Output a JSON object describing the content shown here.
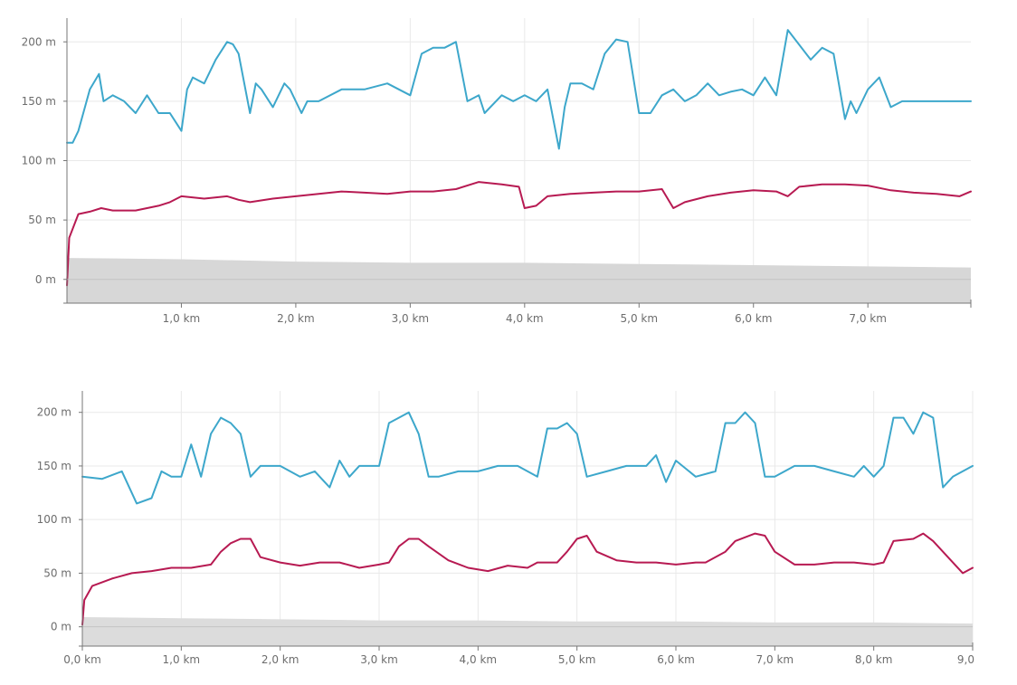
{
  "chart_data": [
    {
      "type": "line",
      "title": "",
      "xlabel": "",
      "ylabel": "",
      "xlim": [
        0,
        7.9
      ],
      "ylim": [
        -20,
        220
      ],
      "x_ticks": [
        {
          "value": 1,
          "label": "1,0 km"
        },
        {
          "value": 2,
          "label": "2,0 km"
        },
        {
          "value": 3,
          "label": "3,0 km"
        },
        {
          "value": 4,
          "label": "4,0 km"
        },
        {
          "value": 5,
          "label": "5,0 km"
        },
        {
          "value": 6,
          "label": "6,0 km"
        },
        {
          "value": 7,
          "label": "7,0 km"
        }
      ],
      "y_ticks": [
        {
          "value": 0,
          "label": "0 m"
        },
        {
          "value": 50,
          "label": "50 m"
        },
        {
          "value": 100,
          "label": "100 m"
        },
        {
          "value": 150,
          "label": "150 m"
        },
        {
          "value": 200,
          "label": "200 m"
        }
      ],
      "series": [
        {
          "name": "blue",
          "color": "#3da7cb",
          "type": "line",
          "x": [
            0,
            0.05,
            0.1,
            0.2,
            0.28,
            0.32,
            0.4,
            0.5,
            0.6,
            0.7,
            0.8,
            0.9,
            1.0,
            1.05,
            1.1,
            1.2,
            1.3,
            1.4,
            1.45,
            1.5,
            1.6,
            1.65,
            1.7,
            1.8,
            1.9,
            1.95,
            2.05,
            2.1,
            2.2,
            2.4,
            2.6,
            2.8,
            3.0,
            3.1,
            3.2,
            3.3,
            3.4,
            3.5,
            3.6,
            3.65,
            3.8,
            3.9,
            4.0,
            4.1,
            4.2,
            4.3,
            4.35,
            4.4,
            4.5,
            4.6,
            4.7,
            4.8,
            4.9,
            5.0,
            5.1,
            5.2,
            5.3,
            5.4,
            5.5,
            5.6,
            5.7,
            5.8,
            5.9,
            6.0,
            6.1,
            6.2,
            6.3,
            6.5,
            6.6,
            6.7,
            6.8,
            6.85,
            6.9,
            7.0,
            7.1,
            7.2,
            7.3,
            7.4,
            7.5,
            7.6,
            7.7,
            7.8,
            7.9
          ],
          "values": [
            115,
            115,
            125,
            160,
            173,
            150,
            155,
            150,
            140,
            155,
            140,
            140,
            125,
            160,
            170,
            165,
            185,
            200,
            198,
            190,
            140,
            165,
            160,
            145,
            165,
            160,
            140,
            150,
            150,
            160,
            160,
            165,
            155,
            190,
            195,
            195,
            200,
            150,
            155,
            140,
            155,
            150,
            155,
            150,
            160,
            110,
            145,
            165,
            165,
            160,
            190,
            202,
            200,
            140,
            140,
            155,
            160,
            150,
            155,
            165,
            155,
            158,
            160,
            155,
            170,
            155,
            210,
            185,
            195,
            190,
            135,
            150,
            140,
            160,
            170,
            145,
            150,
            150,
            150,
            150,
            150,
            150,
            150
          ]
        },
        {
          "name": "red",
          "color": "#b71a52",
          "type": "line",
          "x": [
            0,
            0.02,
            0.1,
            0.2,
            0.3,
            0.4,
            0.6,
            0.8,
            0.9,
            1.0,
            1.2,
            1.4,
            1.5,
            1.6,
            1.8,
            2.0,
            2.2,
            2.4,
            2.6,
            2.8,
            3.0,
            3.2,
            3.4,
            3.6,
            3.8,
            3.95,
            4.0,
            4.1,
            4.2,
            4.4,
            4.6,
            4.8,
            5.0,
            5.2,
            5.3,
            5.4,
            5.6,
            5.8,
            6.0,
            6.2,
            6.3,
            6.4,
            6.6,
            6.8,
            7.0,
            7.2,
            7.4,
            7.6,
            7.8,
            7.9
          ],
          "values": [
            -5,
            35,
            55,
            57,
            60,
            58,
            58,
            62,
            65,
            70,
            68,
            70,
            67,
            65,
            68,
            70,
            72,
            74,
            73,
            72,
            74,
            74,
            76,
            82,
            80,
            78,
            60,
            62,
            70,
            72,
            73,
            74,
            74,
            76,
            60,
            65,
            70,
            73,
            75,
            74,
            70,
            78,
            80,
            80,
            79,
            75,
            73,
            72,
            70,
            74
          ]
        },
        {
          "name": "gray",
          "color": "#d7d7d7",
          "type": "area",
          "x": [
            0,
            1,
            2,
            3,
            4,
            5,
            6,
            7,
            7.9
          ],
          "values": [
            18,
            17,
            15,
            14,
            14,
            13,
            12,
            11,
            10
          ]
        }
      ]
    },
    {
      "type": "line",
      "title": "",
      "xlabel": "",
      "ylabel": "",
      "xlim": [
        0,
        9.0
      ],
      "ylim": [
        -18,
        220
      ],
      "x_ticks": [
        {
          "value": 0,
          "label": "0,0 km"
        },
        {
          "value": 1,
          "label": "1,0 km"
        },
        {
          "value": 2,
          "label": "2,0 km"
        },
        {
          "value": 3,
          "label": "3,0 km"
        },
        {
          "value": 4,
          "label": "4,0 km"
        },
        {
          "value": 5,
          "label": "5,0 km"
        },
        {
          "value": 6,
          "label": "6,0 km"
        },
        {
          "value": 7,
          "label": "7,0 km"
        },
        {
          "value": 8,
          "label": "8,0 km"
        },
        {
          "value": 9,
          "label": "9,0"
        }
      ],
      "y_ticks": [
        {
          "value": 0,
          "label": "0 m"
        },
        {
          "value": 50,
          "label": "50 m"
        },
        {
          "value": 100,
          "label": "100 m"
        },
        {
          "value": 150,
          "label": "150 m"
        },
        {
          "value": 200,
          "label": "200 m"
        }
      ],
      "series": [
        {
          "name": "blue",
          "color": "#3da7cb",
          "type": "line",
          "x": [
            0,
            0.2,
            0.4,
            0.55,
            0.7,
            0.8,
            0.9,
            1.0,
            1.1,
            1.2,
            1.3,
            1.4,
            1.5,
            1.6,
            1.7,
            1.8,
            2.0,
            2.2,
            2.35,
            2.5,
            2.6,
            2.7,
            2.8,
            3.0,
            3.1,
            3.2,
            3.3,
            3.4,
            3.5,
            3.6,
            3.8,
            4.0,
            4.2,
            4.4,
            4.6,
            4.7,
            4.8,
            4.9,
            5.0,
            5.1,
            5.3,
            5.5,
            5.7,
            5.8,
            5.9,
            6.0,
            6.2,
            6.4,
            6.5,
            6.6,
            6.7,
            6.8,
            6.9,
            7.0,
            7.2,
            7.4,
            7.6,
            7.8,
            7.9,
            8.0,
            8.1,
            8.2,
            8.3,
            8.4,
            8.5,
            8.6,
            8.7,
            8.8,
            9.0
          ],
          "values": [
            140,
            138,
            145,
            115,
            120,
            145,
            140,
            140,
            170,
            140,
            180,
            195,
            190,
            180,
            140,
            150,
            150,
            140,
            145,
            130,
            155,
            140,
            150,
            150,
            190,
            195,
            200,
            180,
            140,
            140,
            145,
            145,
            150,
            150,
            140,
            185,
            185,
            190,
            180,
            140,
            145,
            150,
            150,
            160,
            135,
            155,
            140,
            145,
            190,
            190,
            200,
            190,
            140,
            140,
            150,
            150,
            145,
            140,
            150,
            140,
            150,
            195,
            195,
            180,
            200,
            195,
            130,
            140,
            150
          ]
        },
        {
          "name": "red",
          "color": "#b71a52",
          "type": "line",
          "x": [
            0,
            0.02,
            0.1,
            0.3,
            0.5,
            0.7,
            0.9,
            1.1,
            1.3,
            1.4,
            1.5,
            1.6,
            1.7,
            1.8,
            2.0,
            2.2,
            2.4,
            2.6,
            2.8,
            3.0,
            3.1,
            3.2,
            3.3,
            3.4,
            3.5,
            3.7,
            3.9,
            4.1,
            4.3,
            4.5,
            4.6,
            4.8,
            4.9,
            5.0,
            5.1,
            5.2,
            5.4,
            5.6,
            5.8,
            6.0,
            6.2,
            6.3,
            6.5,
            6.6,
            6.8,
            6.9,
            7.0,
            7.2,
            7.4,
            7.6,
            7.8,
            8.0,
            8.1,
            8.2,
            8.4,
            8.5,
            8.6,
            8.8,
            8.9,
            9.0
          ],
          "values": [
            2,
            25,
            38,
            45,
            50,
            52,
            55,
            55,
            58,
            70,
            78,
            82,
            82,
            65,
            60,
            57,
            60,
            60,
            55,
            58,
            60,
            75,
            82,
            82,
            75,
            62,
            55,
            52,
            57,
            55,
            60,
            60,
            70,
            82,
            85,
            70,
            62,
            60,
            60,
            58,
            60,
            60,
            70,
            80,
            87,
            85,
            70,
            58,
            58,
            60,
            60,
            58,
            60,
            80,
            82,
            87,
            80,
            60,
            50,
            55
          ]
        },
        {
          "name": "gray",
          "color": "#dcdcdc",
          "type": "area",
          "x": [
            0,
            1,
            2,
            3,
            4,
            5,
            6,
            7,
            8,
            9.0
          ],
          "values": [
            9,
            8,
            7,
            6,
            6,
            5,
            5,
            4,
            4,
            3
          ]
        }
      ]
    }
  ]
}
